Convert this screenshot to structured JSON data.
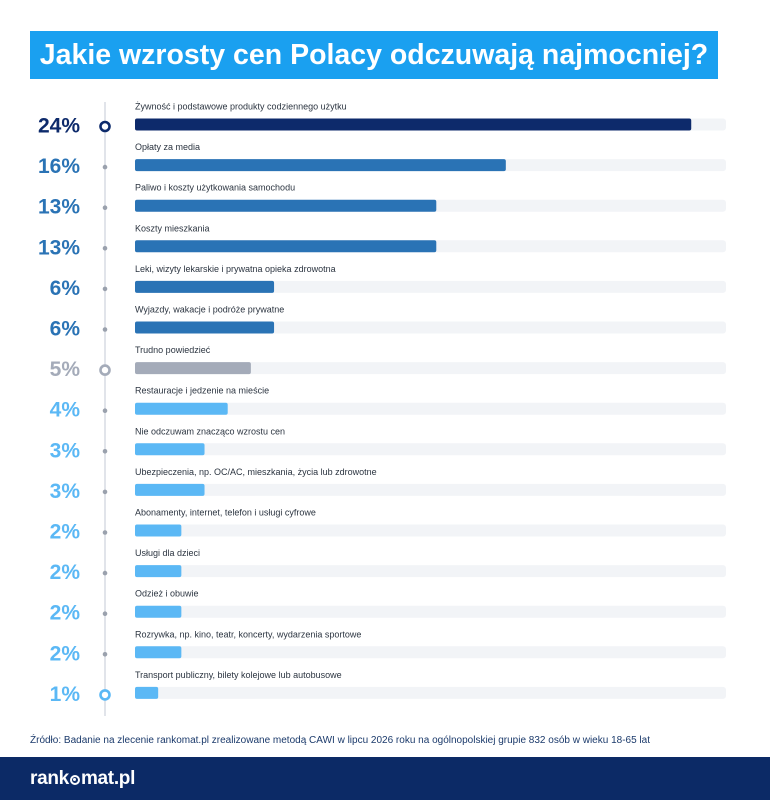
{
  "title": "Jakie wzrosty cen Polacy odczuwają najmocniej?",
  "source": "Źródło: Badanie na zlecenie rankomat.pl zrealizowane metodą CAWI w lipcu 2026 roku na ogólnopolskiej grupie 832 osób w wieku 18-65 lat",
  "logo": {
    "part1": "rank",
    "part2": "mat.pl"
  },
  "colors": {
    "title_bg": "#1aa0f0",
    "footer_bg": "#0c2a66",
    "track": "#f2f4f7",
    "dark_navy": "#0d2a6b",
    "mid_blue": "#2a73b5",
    "gray": "#a4abb9",
    "light_blue": "#5bb8f5"
  },
  "chart_data": {
    "type": "bar",
    "orientation": "horizontal",
    "unit": "%",
    "xlim": [
      0,
      25.5
    ],
    "categories": [
      "Żywność i podstawowe produkty codziennego użytku",
      "Opłaty za media",
      "Paliwo i koszty użytkowania samochodu",
      "Koszty mieszkania",
      "Leki, wizyty lekarskie i prywatna opieka zdrowotna",
      "Wyjazdy, wakacje i podróże prywatne",
      "Trudno powiedzieć",
      "Restauracje i jedzenie na mieście",
      "Nie odczuwam znacząco wzrostu cen",
      "Ubezpieczenia, np. OC/AC, mieszkania, życia lub zdrowotne",
      "Abonamenty, internet, telefon i usługi cyfrowe",
      "Usługi dla dzieci",
      "Odzież i obuwie",
      "Rozrywka, np. kino, teatr, koncerty, wydarzenia sportowe",
      "Transport publiczny, bilety kolejowe lub autobusowe"
    ],
    "values": [
      24,
      16,
      13,
      13,
      6,
      6,
      5,
      4,
      3,
      3,
      2,
      2,
      2,
      2,
      1
    ],
    "value_labels": [
      "24%",
      "16%",
      "13%",
      "13%",
      "6%",
      "6%",
      "5%",
      "4%",
      "3%",
      "3%",
      "2%",
      "2%",
      "2%",
      "2%",
      "1%"
    ],
    "bar_colors": [
      "#0d2a6b",
      "#2a73b5",
      "#2a73b5",
      "#2a73b5",
      "#2a73b5",
      "#2a73b5",
      "#a4abb9",
      "#5bb8f5",
      "#5bb8f5",
      "#5bb8f5",
      "#5bb8f5",
      "#5bb8f5",
      "#5bb8f5",
      "#5bb8f5",
      "#5bb8f5"
    ],
    "label_colors": [
      "#0d2a6b",
      "#2a73b5",
      "#2a73b5",
      "#2a73b5",
      "#2a73b5",
      "#2a73b5",
      "#a4abb9",
      "#5bb8f5",
      "#5bb8f5",
      "#5bb8f5",
      "#5bb8f5",
      "#5bb8f5",
      "#5bb8f5",
      "#5bb8f5",
      "#5bb8f5"
    ],
    "markers": [
      "ring",
      "dot",
      "dot",
      "dot",
      "dot",
      "dot",
      "ring",
      "dot",
      "dot",
      "dot",
      "dot",
      "dot",
      "dot",
      "dot",
      "ring"
    ],
    "marker_colors": [
      "#0d2a6b",
      "#9aa1ad",
      "#9aa1ad",
      "#9aa1ad",
      "#9aa1ad",
      "#9aa1ad",
      "#a4abb9",
      "#9aa1ad",
      "#9aa1ad",
      "#9aa1ad",
      "#9aa1ad",
      "#9aa1ad",
      "#9aa1ad",
      "#9aa1ad",
      "#5bb8f5"
    ]
  }
}
